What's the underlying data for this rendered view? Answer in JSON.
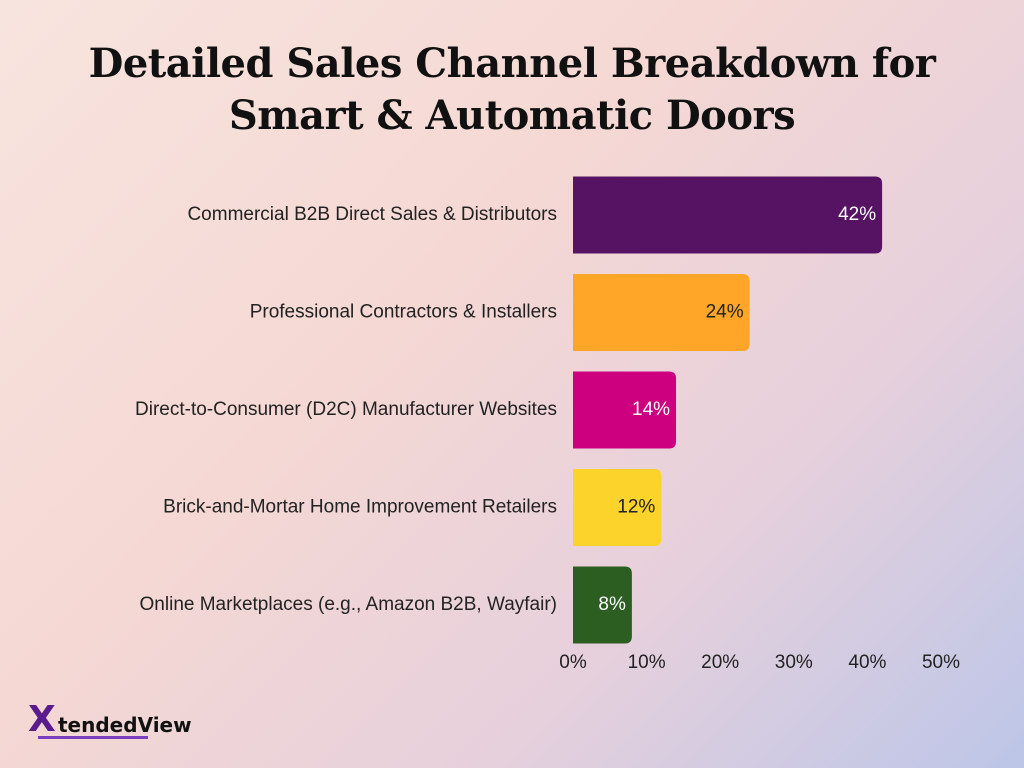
{
  "chart_data": {
    "type": "bar",
    "orientation": "horizontal",
    "title": [
      "Detailed Sales Channel Breakdown for",
      "Smart & Automatic Doors"
    ],
    "categories": [
      "Commercial B2B Direct Sales & Distributors",
      "Professional Contractors & Installers",
      "Direct-to-Consumer (D2C) Manufacturer Websites",
      "Brick-and-Mortar Home Improvement Retailers",
      "Online Marketplaces (e.g., Amazon B2B, Wayfair)"
    ],
    "values": [
      42,
      24,
      14,
      12,
      8
    ],
    "value_labels": [
      "42%",
      "24%",
      "14%",
      "12%",
      "8%"
    ],
    "colors": [
      "#561364",
      "#ffa528",
      "#cd0080",
      "#fcd32a",
      "#2b5e20"
    ],
    "value_label_colors": [
      "#ffffff",
      "#222222",
      "#ffffff",
      "#222222",
      "#ffffff"
    ],
    "xlim": [
      0,
      50
    ],
    "x_ticks": [
      0,
      10,
      20,
      30,
      40,
      50
    ],
    "x_tick_labels": [
      "0%",
      "10%",
      "20%",
      "30%",
      "40%",
      "50%"
    ],
    "grid": false,
    "legend": "none"
  },
  "logo": {
    "mark": "X",
    "word_a": "tended",
    "word_b": "View"
  }
}
